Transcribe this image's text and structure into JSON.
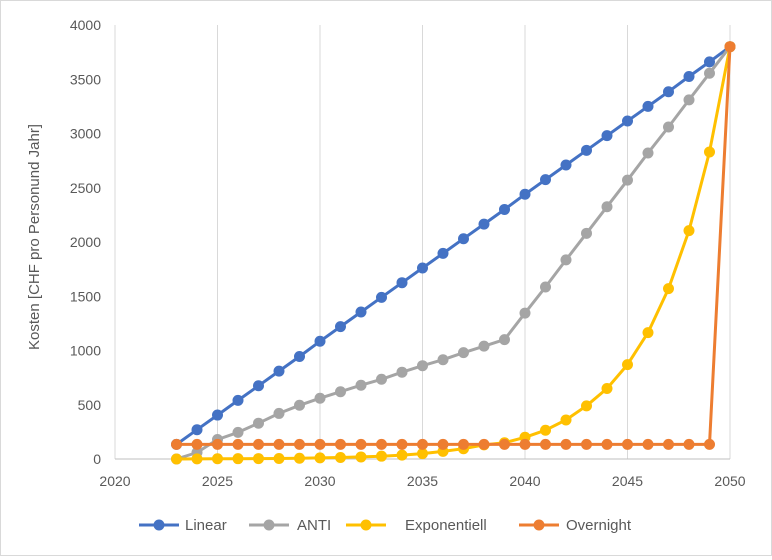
{
  "chart_data": {
    "type": "line",
    "title": "",
    "xlabel": "",
    "ylabel": "Kosten [CHF pro Personund Jahr]",
    "xlim": [
      2020,
      2050
    ],
    "ylim": [
      0,
      4000
    ],
    "xticks": [
      2020,
      2025,
      2030,
      2035,
      2040,
      2045,
      2050
    ],
    "yticks": [
      0,
      500,
      1000,
      1500,
      2000,
      2500,
      3000,
      3500,
      4000
    ],
    "grid": "vertical",
    "legend": "bottom",
    "series": [
      {
        "name": "Linear",
        "color": "#4472C4",
        "x": [
          2023,
          2024,
          2025,
          2026,
          2027,
          2028,
          2029,
          2030,
          2031,
          2032,
          2033,
          2034,
          2035,
          2036,
          2037,
          2038,
          2039,
          2040,
          2041,
          2042,
          2043,
          2044,
          2045,
          2046,
          2047,
          2048,
          2049,
          2050
        ],
        "values": [
          135,
          270,
          405,
          540,
          675,
          810,
          945,
          1085,
          1220,
          1355,
          1490,
          1625,
          1760,
          1895,
          2030,
          2165,
          2300,
          2440,
          2575,
          2710,
          2845,
          2980,
          3115,
          3250,
          3385,
          3525,
          3660,
          3800
        ]
      },
      {
        "name": "ANTI",
        "color": "#A5A5A5",
        "x": [
          2023,
          2024,
          2025,
          2026,
          2027,
          2028,
          2029,
          2030,
          2031,
          2032,
          2033,
          2034,
          2035,
          2036,
          2037,
          2038,
          2039,
          2040,
          2041,
          2042,
          2043,
          2044,
          2045,
          2046,
          2047,
          2048,
          2049,
          2050
        ],
        "values": [
          0,
          60,
          180,
          245,
          330,
          420,
          495,
          560,
          620,
          680,
          735,
          800,
          860,
          915,
          980,
          1040,
          1100,
          1345,
          1585,
          1835,
          2080,
          2325,
          2570,
          2820,
          3060,
          3310,
          3555,
          3800
        ]
      },
      {
        "name": "Exponentiell",
        "color": "#FFC000",
        "x": [
          2023,
          2024,
          2025,
          2026,
          2027,
          2028,
          2029,
          2030,
          2031,
          2032,
          2033,
          2034,
          2035,
          2036,
          2037,
          2038,
          2039,
          2040,
          2041,
          2042,
          2043,
          2044,
          2045,
          2046,
          2047,
          2048,
          2049,
          2050
        ],
        "values": [
          0,
          1,
          2,
          3,
          4,
          5,
          7,
          10,
          14,
          19,
          26,
          36,
          50,
          70,
          95,
          130,
          150,
          200,
          265,
          360,
          490,
          650,
          870,
          1165,
          1570,
          2105,
          2830,
          3800
        ]
      },
      {
        "name": "Overnight",
        "color": "#ED7D31",
        "x": [
          2023,
          2024,
          2025,
          2026,
          2027,
          2028,
          2029,
          2030,
          2031,
          2032,
          2033,
          2034,
          2035,
          2036,
          2037,
          2038,
          2039,
          2040,
          2041,
          2042,
          2043,
          2044,
          2045,
          2046,
          2047,
          2048,
          2049,
          2050
        ],
        "values": [
          135,
          135,
          135,
          135,
          135,
          135,
          135,
          135,
          135,
          135,
          135,
          135,
          135,
          135,
          135,
          135,
          135,
          135,
          135,
          135,
          135,
          135,
          135,
          135,
          135,
          135,
          135,
          3800
        ]
      }
    ]
  }
}
